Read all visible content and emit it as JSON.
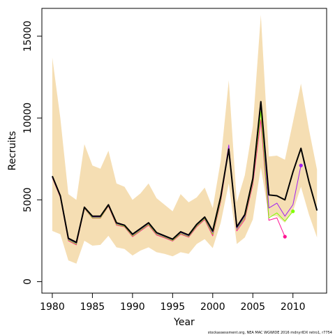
{
  "chart_data": {
    "type": "line",
    "xlabel": "Year",
    "ylabel": "Recruits",
    "footnote": "stockassessment.org, NEA MAC WGWIDE 2016 mdnyrIDX retro1, r7754",
    "xlim": [
      1978.7,
      2014.2
    ],
    "ylim": [
      -700,
      16700
    ],
    "x_ticks": [
      1980,
      1985,
      1990,
      1995,
      2000,
      2005,
      2010
    ],
    "y_ticks": [
      0,
      5000,
      10000,
      15000
    ],
    "colors": {
      "band": "#f5deb3",
      "main": "#000000",
      "retro_1": "#a020f0",
      "retro_2": "#7fff00",
      "retro_3": "#ff1493"
    },
    "confidence_band": {
      "years": [
        1980,
        1981,
        1982,
        1983,
        1984,
        1985,
        1986,
        1987,
        1988,
        1989,
        1990,
        1991,
        1992,
        1993,
        1994,
        1995,
        1996,
        1997,
        1998,
        1999,
        2000,
        2001,
        2002,
        2003,
        2004,
        2005,
        2006,
        2007,
        2008,
        2009,
        2010,
        2011,
        2012,
        2013
      ],
      "upper": [
        13700,
        10000,
        5350,
        5000,
        8400,
        7100,
        6900,
        8000,
        6000,
        5800,
        5000,
        5400,
        6000,
        5100,
        4700,
        4300,
        5350,
        4850,
        5150,
        5750,
        4500,
        7400,
        12300,
        4850,
        6500,
        9500,
        16300,
        7650,
        7700,
        7450,
        9750,
        12100,
        9300,
        6850
      ],
      "lower": [
        3100,
        2900,
        1300,
        1100,
        2500,
        2200,
        2250,
        2800,
        2100,
        2000,
        1600,
        1900,
        2100,
        1800,
        1700,
        1550,
        1800,
        1700,
        2300,
        2600,
        2050,
        3600,
        6000,
        2300,
        2700,
        3800,
        7000,
        4000,
        4000,
        3600,
        4300,
        5800,
        4100,
        2700
      ]
    },
    "series": [
      {
        "color_key": "main",
        "years": [
          1980,
          1981,
          1982,
          1983,
          1984,
          1985,
          1986,
          1987,
          1988,
          1989,
          1990,
          1991,
          1992,
          1993,
          1994,
          1995,
          1996,
          1997,
          1998,
          1999,
          2000,
          2001,
          2002,
          2003,
          2004,
          2005,
          2006,
          2007,
          2008,
          2009,
          2010,
          2011,
          2012,
          2013
        ],
        "values": [
          6450,
          5250,
          2650,
          2400,
          4550,
          4000,
          4000,
          4700,
          3600,
          3450,
          2900,
          3250,
          3600,
          3000,
          2800,
          2600,
          3050,
          2850,
          3500,
          3950,
          3100,
          5200,
          8100,
          3350,
          4100,
          6300,
          11000,
          5300,
          5250,
          5000,
          6700,
          8150,
          6100,
          4350
        ]
      },
      {
        "color_key": "retro_1",
        "years": [
          1980,
          1981,
          1982,
          1983,
          1984,
          1985,
          1986,
          1987,
          1988,
          1989,
          1990,
          1991,
          1992,
          1993,
          1994,
          1995,
          1996,
          1997,
          1998,
          1999,
          2000,
          2001,
          2002,
          2003,
          2004,
          2005,
          2006,
          2007,
          2008,
          2009,
          2010,
          2011
        ],
        "values": [
          6400,
          5200,
          2600,
          2350,
          4520,
          3950,
          3950,
          4680,
          3550,
          3420,
          2850,
          3200,
          3550,
          2950,
          2760,
          2560,
          3000,
          2800,
          3450,
          3900,
          3000,
          5100,
          8350,
          3250,
          4000,
          6200,
          10900,
          4500,
          4800,
          4000,
          4700,
          7100
        ]
      },
      {
        "color_key": "retro_2",
        "years": [
          1980,
          1981,
          1982,
          1983,
          1984,
          1985,
          1986,
          1987,
          1988,
          1989,
          1990,
          1991,
          1992,
          1993,
          1994,
          1995,
          1996,
          1997,
          1998,
          1999,
          2000,
          2001,
          2002,
          2003,
          2004,
          2005,
          2006,
          2007,
          2008,
          2009,
          2010
        ],
        "values": [
          6380,
          5180,
          2550,
          2300,
          4500,
          3900,
          3900,
          4650,
          3500,
          3380,
          2800,
          3150,
          3500,
          2900,
          2720,
          2520,
          2950,
          2760,
          3400,
          3850,
          2900,
          5000,
          8250,
          3200,
          3900,
          6100,
          10400,
          3900,
          4200,
          3700,
          4300
        ]
      },
      {
        "color_key": "retro_3",
        "years": [
          1980,
          1981,
          1982,
          1983,
          1984,
          1985,
          1986,
          1987,
          1988,
          1989,
          1990,
          1991,
          1992,
          1993,
          1994,
          1995,
          1996,
          1997,
          1998,
          1999,
          2000,
          2001,
          2002,
          2003,
          2004,
          2005,
          2006,
          2007,
          2008,
          2009
        ],
        "values": [
          6350,
          5150,
          2500,
          2250,
          4480,
          3880,
          3880,
          4620,
          3450,
          3350,
          2750,
          3100,
          3450,
          2850,
          2680,
          2480,
          2900,
          2720,
          3350,
          3800,
          2800,
          4900,
          8150,
          3100,
          3800,
          5950,
          9900,
          3750,
          3900,
          2750
        ]
      }
    ]
  }
}
